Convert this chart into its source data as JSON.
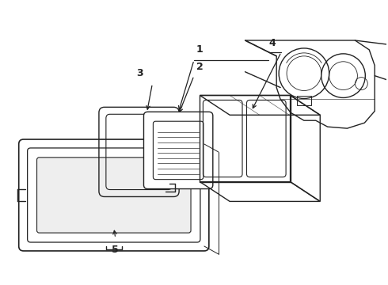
{
  "bg_color": "#ffffff",
  "line_color": "#222222",
  "lw": 1.0,
  "fig_width": 4.9,
  "fig_height": 3.6,
  "dpi": 100
}
